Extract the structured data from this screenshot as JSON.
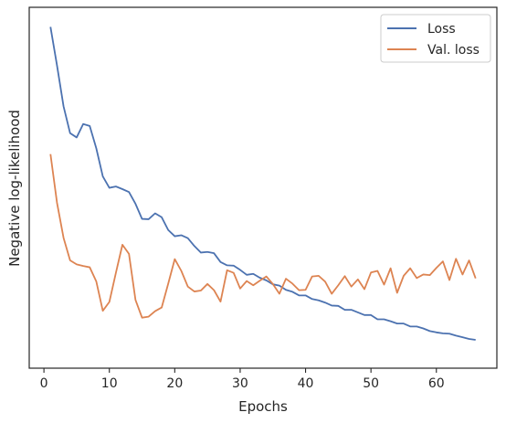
{
  "chart_data": {
    "type": "line",
    "xlabel": "Epochs",
    "ylabel": "Negative log-likelihood",
    "xlim": [
      -2.25,
      69.25
    ],
    "ylim": [
      0,
      1
    ],
    "xticks": [
      0,
      10,
      20,
      30,
      40,
      50,
      60
    ],
    "yticks_shown": false,
    "grid": false,
    "legend_position": "top-right",
    "series": [
      {
        "name": "Loss",
        "color": "#4c72b0",
        "x": [
          1,
          2,
          3,
          4,
          5,
          6,
          7,
          8,
          9,
          10,
          11,
          12,
          13,
          14,
          15,
          16,
          17,
          18,
          19,
          20,
          21,
          22,
          23,
          24,
          25,
          26,
          27,
          28,
          29,
          30,
          31,
          32,
          33,
          34,
          35,
          36,
          37,
          38,
          39,
          40,
          41,
          42,
          43,
          44,
          45,
          46,
          47,
          48,
          49,
          50,
          51,
          52,
          53,
          54,
          55,
          56,
          57,
          58,
          59,
          60,
          61,
          62,
          63,
          64,
          65,
          66
        ],
        "values": [
          0.996,
          0.878,
          0.753,
          0.671,
          0.658,
          0.699,
          0.693,
          0.625,
          0.539,
          0.504,
          0.508,
          0.5,
          0.491,
          0.455,
          0.409,
          0.408,
          0.426,
          0.414,
          0.375,
          0.356,
          0.359,
          0.35,
          0.326,
          0.306,
          0.308,
          0.304,
          0.277,
          0.267,
          0.266,
          0.253,
          0.238,
          0.241,
          0.229,
          0.221,
          0.209,
          0.205,
          0.192,
          0.186,
          0.175,
          0.175,
          0.164,
          0.16,
          0.153,
          0.144,
          0.143,
          0.131,
          0.131,
          0.123,
          0.115,
          0.115,
          0.102,
          0.102,
          0.096,
          0.089,
          0.089,
          0.08,
          0.08,
          0.074,
          0.066,
          0.062,
          0.059,
          0.058,
          0.052,
          0.047,
          0.042,
          0.039
        ]
      },
      {
        "name": "Val. loss",
        "color": "#dd8452",
        "x": [
          1,
          2,
          3,
          4,
          5,
          6,
          7,
          8,
          9,
          10,
          11,
          12,
          13,
          14,
          15,
          16,
          17,
          18,
          19,
          20,
          21,
          22,
          23,
          24,
          25,
          26,
          27,
          28,
          29,
          30,
          31,
          32,
          33,
          34,
          35,
          36,
          37,
          38,
          39,
          40,
          41,
          42,
          43,
          44,
          45,
          46,
          47,
          48,
          49,
          50,
          51,
          52,
          53,
          54,
          55,
          56,
          57,
          58,
          59,
          60,
          61,
          62,
          63,
          64,
          65,
          66
        ],
        "values": [
          0.607,
          0.458,
          0.351,
          0.282,
          0.27,
          0.265,
          0.261,
          0.218,
          0.128,
          0.155,
          0.244,
          0.33,
          0.302,
          0.161,
          0.107,
          0.11,
          0.127,
          0.138,
          0.211,
          0.286,
          0.25,
          0.202,
          0.187,
          0.19,
          0.21,
          0.191,
          0.156,
          0.252,
          0.244,
          0.196,
          0.219,
          0.206,
          0.22,
          0.233,
          0.21,
          0.18,
          0.226,
          0.211,
          0.191,
          0.192,
          0.233,
          0.235,
          0.217,
          0.18,
          0.206,
          0.234,
          0.202,
          0.224,
          0.194,
          0.245,
          0.25,
          0.208,
          0.258,
          0.183,
          0.235,
          0.258,
          0.228,
          0.239,
          0.237,
          0.259,
          0.279,
          0.222,
          0.287,
          0.239,
          0.282,
          0.227
        ]
      }
    ]
  }
}
